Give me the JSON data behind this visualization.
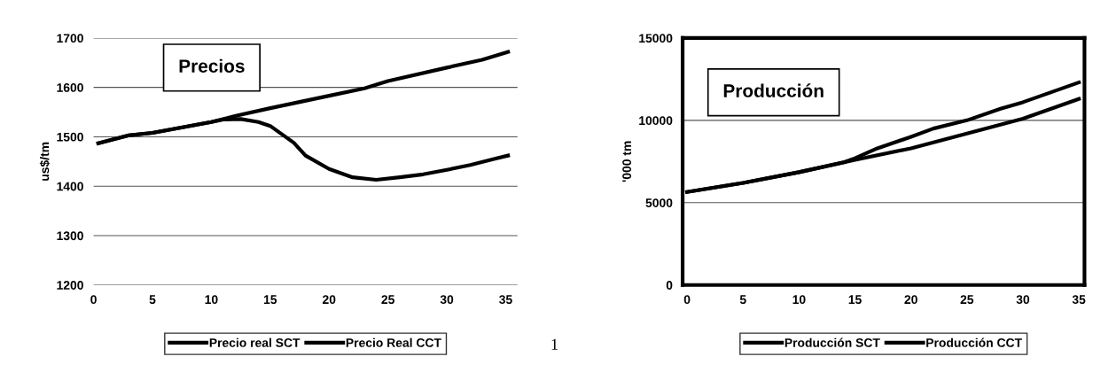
{
  "chart_data": [
    {
      "type": "line",
      "title": "Precios",
      "ylabel": "us$/tm",
      "xlim": [
        0,
        36
      ],
      "xticks": [
        0,
        5,
        10,
        15,
        20,
        25,
        30,
        35
      ],
      "ylim": [
        1200,
        1700
      ],
      "yticks": [
        1200,
        1300,
        1400,
        1500,
        1600,
        1700
      ],
      "grid": "y",
      "legend": "bottom",
      "marker": "none",
      "series": [
        {
          "name": "Precio real SCT",
          "color": "#000000",
          "line_style": "solid",
          "x": [
            0.4,
            3,
            5,
            10,
            12,
            15,
            20,
            23,
            25,
            30,
            33,
            35.2
          ],
          "values": [
            1487,
            1503,
            1508,
            1530,
            1542,
            1558,
            1583,
            1598,
            1613,
            1640,
            1656,
            1672
          ]
        },
        {
          "name": "Precio Real CCT",
          "color": "#000000",
          "line_style": "solid",
          "x": [
            0.4,
            3,
            5,
            10,
            11,
            12.5,
            14,
            15,
            16,
            17,
            18,
            20,
            22,
            24,
            26,
            28,
            30,
            32,
            34,
            35.2
          ],
          "values": [
            1487,
            1503,
            1508,
            1530,
            1535,
            1536,
            1530,
            1522,
            1505,
            1488,
            1462,
            1435,
            1418,
            1413,
            1418,
            1424,
            1433,
            1443,
            1455,
            1462
          ]
        }
      ]
    },
    {
      "type": "line",
      "title": "Producción",
      "ylabel": "'000 tm",
      "xlim": [
        -0.4,
        35.5
      ],
      "xticks": [
        0,
        5,
        10,
        15,
        20,
        25,
        30,
        35
      ],
      "ylim": [
        0,
        15000
      ],
      "yticks": [
        0,
        5000,
        10000,
        15000
      ],
      "grid": "y",
      "legend": "bottom",
      "marker": "none",
      "annotations": [
        "1"
      ],
      "series": [
        {
          "name": "Producción SCT",
          "color": "#000000",
          "line_style": "solid",
          "x": [
            0,
            5,
            10,
            15,
            20,
            25,
            30,
            35
          ],
          "values": [
            5650,
            6200,
            6850,
            7600,
            8300,
            9200,
            10100,
            11300
          ]
        },
        {
          "name": "Producción CCT",
          "color": "#000000",
          "line_style": "solid",
          "x": [
            0,
            5,
            10,
            14,
            15,
            17,
            20,
            22,
            25,
            28,
            30,
            35
          ],
          "values": [
            5650,
            6200,
            6850,
            7450,
            7700,
            8300,
            9000,
            9500,
            10000,
            10700,
            11100,
            12300
          ]
        }
      ]
    }
  ]
}
